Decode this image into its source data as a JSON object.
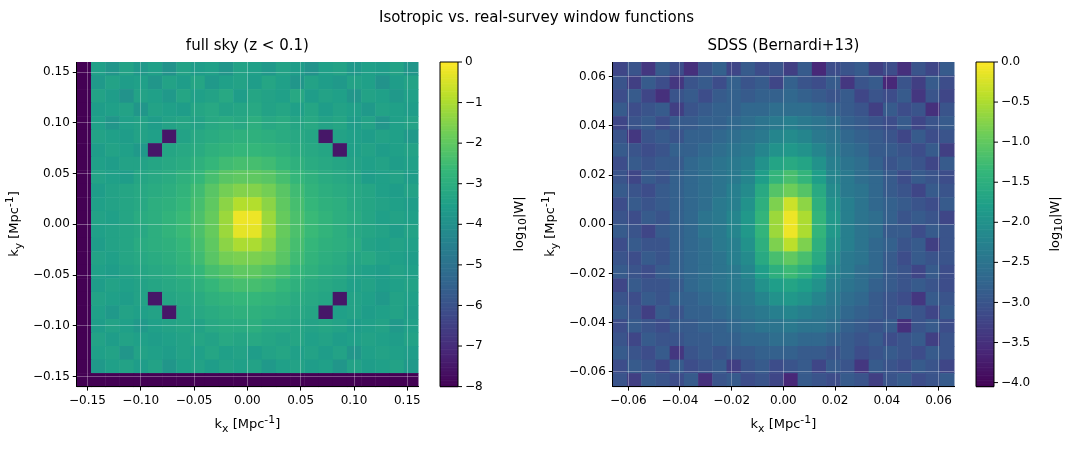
{
  "chart_data": [
    {
      "type": "other",
      "title": "Isotropic vs. real-survey window functions"
    },
    {
      "type": "heatmap",
      "title": "full sky (z < 0.1)",
      "xlabel": "k$_{x}$ [Mpc$^{-1}$]",
      "ylabel": "k$_{y}$ [Mpc$^{-1}$]",
      "clabel": "log$_{10}$|W|",
      "grid": true,
      "xlim": [
        -0.16,
        0.16
      ],
      "ylim": [
        -0.16,
        0.16
      ],
      "xticks": [
        {
          "value": -0.15,
          "label": "−0.15"
        },
        {
          "value": -0.1,
          "label": "−0.10"
        },
        {
          "value": -0.05,
          "label": "−0.05"
        },
        {
          "value": 0,
          "label": "0.00"
        },
        {
          "value": 0.05,
          "label": "0.05"
        },
        {
          "value": 0.1,
          "label": "0.10"
        },
        {
          "value": 0.15,
          "label": "0.15"
        }
      ],
      "yticks": [
        {
          "value": -0.15,
          "label": "−0.15"
        },
        {
          "value": -0.1,
          "label": "−0.10"
        },
        {
          "value": -0.05,
          "label": "−0.05"
        },
        {
          "value": 0,
          "label": "0.00"
        },
        {
          "value": 0.05,
          "label": "0.05"
        },
        {
          "value": 0.1,
          "label": "0.10"
        },
        {
          "value": 0.15,
          "label": "0.15"
        }
      ],
      "clim": [
        -8,
        0
      ],
      "cticks": [
        0,
        {
          "value": -1,
          "label": "−1"
        },
        {
          "value": -2,
          "label": "−2"
        },
        {
          "value": -3,
          "label": "−3"
        },
        {
          "value": -4,
          "label": "−4"
        },
        {
          "value": -5,
          "label": "−5"
        },
        {
          "value": -6,
          "label": "−6"
        },
        {
          "value": -7,
          "label": "−7"
        },
        {
          "value": -8,
          "label": "−8"
        }
      ],
      "cells": [
        [
          -8,
          -3.5,
          -3.8,
          -3.4,
          -3.7,
          -3.5,
          -3.9,
          -3.4,
          -3.6,
          -3.5,
          -3.8,
          -3.4,
          -3.5,
          -3.7,
          -3.4,
          -3.6,
          -3.9,
          -3.5,
          -3.4,
          -3.7,
          -3.5,
          -3.6,
          -3.4,
          -3.8
        ],
        [
          -8,
          -3.7,
          -3.4,
          -3.6,
          -3.5,
          -3.8,
          -3.4,
          -3.6,
          -3.3,
          -3.7,
          -3.5,
          -3.4,
          -3.6,
          -3.3,
          -3.5,
          -3.8,
          -3.4,
          -3.6,
          -3.7,
          -3.4,
          -3.5,
          -3.9,
          -3.6,
          -3.4
        ],
        [
          -8,
          -3.4,
          -3.6,
          -3.9,
          -3.4,
          -3.5,
          -3.7,
          -3.3,
          -3.5,
          -3.4,
          -3.2,
          -3.6,
          -3.3,
          -3.4,
          -3.5,
          -3.2,
          -3.6,
          -3.4,
          -3.5,
          -3.8,
          -3.4,
          -3.5,
          -3.7,
          -3.5
        ],
        [
          -8,
          -3.6,
          -3.5,
          -3.4,
          -3.8,
          -3.4,
          -3.5,
          -3.6,
          -3.3,
          -3.2,
          -3.4,
          -3.3,
          -3.2,
          -3.4,
          -3.3,
          -3.5,
          -3.3,
          -3.6,
          -3.4,
          -3.5,
          -3.7,
          -3.4,
          -3.5,
          -3.6
        ],
        [
          -8,
          -3.5,
          -3.8,
          -3.5,
          -3.4,
          -3.6,
          -3.4,
          -3.3,
          -3.4,
          -3.2,
          -3.1,
          -3.2,
          -3.0,
          -3.2,
          -3.1,
          -3.3,
          -3.2,
          -3.4,
          -3.3,
          -3.6,
          -3.4,
          -3.8,
          -3.5,
          -3.4
        ],
        [
          -8,
          -3.4,
          -3.5,
          -3.6,
          -3.4,
          -3.5,
          -7.5,
          -3.4,
          -3.2,
          -3.1,
          -3.0,
          -2.9,
          -2.9,
          -3.0,
          -3.1,
          -3.2,
          -3.3,
          -7.5,
          -3.4,
          -3.5,
          -3.6,
          -3.4,
          -3.5,
          -3.7
        ],
        [
          -8,
          -3.6,
          -3.4,
          -3.5,
          -3.7,
          -7.5,
          -3.3,
          -3.2,
          -3.1,
          -2.9,
          -2.8,
          -2.7,
          -2.7,
          -2.8,
          -2.9,
          -3.1,
          -3.2,
          -3.3,
          -7.5,
          -3.5,
          -3.4,
          -3.6,
          -3.5,
          -3.4
        ],
        [
          -8,
          -3.5,
          -3.6,
          -3.4,
          -3.4,
          -3.3,
          -3.2,
          -3.1,
          -2.9,
          -2.7,
          -2.5,
          -2.4,
          -2.4,
          -2.5,
          -2.7,
          -2.9,
          -3.1,
          -3.2,
          -3.3,
          -3.4,
          -3.5,
          -3.4,
          -3.6,
          -3.5
        ],
        [
          -8,
          -3.4,
          -3.5,
          -3.6,
          -3.3,
          -3.2,
          -3.1,
          -2.9,
          -2.7,
          -2.4,
          -2.1,
          -2.0,
          -2.0,
          -2.1,
          -2.4,
          -2.7,
          -2.9,
          -3.1,
          -3.2,
          -3.3,
          -3.6,
          -3.5,
          -3.4,
          -3.6
        ],
        [
          -8,
          -3.6,
          -3.4,
          -3.3,
          -3.2,
          -3.1,
          -3.0,
          -2.8,
          -2.5,
          -2.1,
          -1.7,
          -1.5,
          -1.5,
          -1.7,
          -2.1,
          -2.5,
          -2.8,
          -3.0,
          -3.1,
          -3.2,
          -3.3,
          -3.5,
          -3.6,
          -3.4
        ],
        [
          -8,
          -3.5,
          -3.4,
          -3.3,
          -3.2,
          -3.0,
          -2.9,
          -2.7,
          -2.4,
          -2.0,
          -1.4,
          -0.9,
          -0.9,
          -1.4,
          -2.0,
          -2.4,
          -2.7,
          -2.9,
          -3.0,
          -3.2,
          -3.3,
          -3.4,
          -3.5,
          -3.6
        ],
        [
          -8,
          -3.4,
          -3.5,
          -3.3,
          -3.1,
          -3.0,
          -2.8,
          -2.6,
          -2.3,
          -1.9,
          -1.2,
          -0.2,
          -0.2,
          -1.2,
          -1.9,
          -2.3,
          -2.6,
          -2.8,
          -3.0,
          -3.1,
          -3.3,
          -3.5,
          -3.4,
          -3.5
        ],
        [
          -8,
          -3.5,
          -3.4,
          -3.3,
          -3.2,
          -3.0,
          -2.8,
          -2.6,
          -2.3,
          -1.9,
          -1.2,
          -0.3,
          -0.3,
          -1.2,
          -1.9,
          -2.3,
          -2.6,
          -2.8,
          -3.0,
          -3.2,
          -3.3,
          -3.4,
          -3.6,
          -3.4
        ],
        [
          -8,
          -3.6,
          -3.4,
          -3.3,
          -3.1,
          -3.0,
          -2.9,
          -2.7,
          -2.4,
          -2.0,
          -1.4,
          -1.0,
          -1.0,
          -1.4,
          -2.0,
          -2.4,
          -2.7,
          -2.9,
          -3.0,
          -3.1,
          -3.4,
          -3.5,
          -3.4,
          -3.5
        ],
        [
          -8,
          -3.4,
          -3.5,
          -3.3,
          -3.2,
          -3.1,
          -3.0,
          -2.8,
          -2.5,
          -2.1,
          -1.7,
          -1.6,
          -1.6,
          -1.7,
          -2.1,
          -2.5,
          -2.8,
          -3.0,
          -3.1,
          -3.3,
          -3.2,
          -3.4,
          -3.5,
          -3.6
        ],
        [
          -8,
          -3.5,
          -3.6,
          -3.4,
          -3.3,
          -3.2,
          -3.1,
          -2.9,
          -2.7,
          -2.4,
          -2.2,
          -2.0,
          -2.0,
          -2.2,
          -2.4,
          -2.7,
          -2.9,
          -3.1,
          -3.2,
          -3.4,
          -3.5,
          -3.6,
          -3.4,
          -3.5
        ],
        [
          -8,
          -3.6,
          -3.4,
          -3.5,
          -3.4,
          -3.3,
          -3.2,
          -3.1,
          -2.9,
          -2.7,
          -2.5,
          -2.4,
          -2.4,
          -2.5,
          -2.7,
          -2.9,
          -3.1,
          -3.2,
          -3.3,
          -3.5,
          -3.4,
          -3.6,
          -3.5,
          -3.4
        ],
        [
          -8,
          -3.4,
          -3.5,
          -3.6,
          -3.4,
          -7.5,
          -3.3,
          -3.2,
          -3.1,
          -2.9,
          -2.8,
          -2.7,
          -2.7,
          -2.8,
          -2.9,
          -3.1,
          -3.2,
          -3.3,
          -7.5,
          -3.4,
          -3.5,
          -3.7,
          -3.4,
          -3.5
        ],
        [
          -8,
          -3.5,
          -3.7,
          -3.4,
          -3.5,
          -3.4,
          -7.5,
          -3.3,
          -3.2,
          -3.1,
          -3.0,
          -2.9,
          -2.9,
          -3.0,
          -3.1,
          -3.2,
          -3.3,
          -7.5,
          -3.5,
          -3.4,
          -3.6,
          -3.5,
          -3.4,
          -3.6
        ],
        [
          -8,
          -3.6,
          -3.4,
          -3.5,
          -3.7,
          -3.5,
          -3.4,
          -3.3,
          -3.4,
          -3.2,
          -3.1,
          -3.1,
          -3.0,
          -3.2,
          -3.2,
          -3.3,
          -3.4,
          -3.3,
          -3.4,
          -3.6,
          -3.5,
          -3.4,
          -3.7,
          -3.5
        ],
        [
          -8,
          -3.4,
          -3.6,
          -3.4,
          -3.5,
          -3.6,
          -3.5,
          -3.4,
          -3.3,
          -3.4,
          -3.2,
          -3.3,
          -3.2,
          -3.3,
          -3.4,
          -3.3,
          -3.5,
          -3.4,
          -3.6,
          -3.5,
          -3.4,
          -3.5,
          -3.6,
          -3.4
        ],
        [
          -8,
          -3.5,
          -3.4,
          -3.8,
          -3.4,
          -3.5,
          -3.6,
          -3.4,
          -3.5,
          -3.3,
          -3.5,
          -3.4,
          -3.6,
          -3.4,
          -3.3,
          -3.5,
          -3.4,
          -3.6,
          -3.4,
          -3.8,
          -3.5,
          -3.4,
          -3.5,
          -3.6
        ],
        [
          -8,
          -3.7,
          -3.5,
          -3.4,
          -3.6,
          -3.4,
          -3.8,
          -3.5,
          -3.4,
          -3.6,
          -3.4,
          -3.5,
          -3.4,
          -3.7,
          -3.5,
          -3.4,
          -3.6,
          -3.5,
          -3.8,
          -3.4,
          -3.6,
          -3.5,
          -3.4,
          -3.7
        ],
        [
          -8,
          -8,
          -8,
          -8,
          -8,
          -8,
          -8,
          -8,
          -8,
          -8,
          -8,
          -8,
          -8,
          -8,
          -8,
          -8,
          -8,
          -8,
          -8,
          -8,
          -8,
          -8,
          -8,
          -8
        ]
      ]
    },
    {
      "type": "heatmap",
      "title": "SDSS (Bernardi+13)",
      "xlabel": "k$_{x}$ [Mpc$^{-1}$]",
      "ylabel": "k$_{y}$ [Mpc$^{-1}$]",
      "clabel": "log$_{10}$|W|",
      "grid": true,
      "xlim": [
        -0.066,
        0.066
      ],
      "ylim": [
        -0.066,
        0.066
      ],
      "xticks": [
        {
          "value": -0.06,
          "label": "−0.06"
        },
        {
          "value": -0.04,
          "label": "−0.04"
        },
        {
          "value": -0.02,
          "label": "−0.02"
        },
        {
          "value": 0,
          "label": "0.00"
        },
        {
          "value": 0.02,
          "label": "0.02"
        },
        {
          "value": 0.04,
          "label": "0.04"
        },
        {
          "value": 0.06,
          "label": "0.06"
        }
      ],
      "yticks": [
        {
          "value": -0.06,
          "label": "−0.06"
        },
        {
          "value": -0.04,
          "label": "−0.04"
        },
        {
          "value": -0.02,
          "label": "−0.02"
        },
        {
          "value": 0,
          "label": "0.00"
        },
        {
          "value": 0.02,
          "label": "0.02"
        },
        {
          "value": 0.04,
          "label": "0.04"
        },
        {
          "value": 0.06,
          "label": "0.06"
        }
      ],
      "clim": [
        -4.05,
        0
      ],
      "cticks": [
        {
          "value": 0,
          "label": "0.0"
        },
        {
          "value": -0.5,
          "label": "−0.5"
        },
        {
          "value": -1,
          "label": "−1.0"
        },
        {
          "value": -1.5,
          "label": "−1.5"
        },
        {
          "value": -2,
          "label": "−2.0"
        },
        {
          "value": -2.5,
          "label": "−2.5"
        },
        {
          "value": -3,
          "label": "−3.0"
        },
        {
          "value": -3.5,
          "label": "−3.5"
        },
        {
          "value": -4,
          "label": "−4.0"
        }
      ],
      "cells": [
        [
          -3.2,
          -3.0,
          -3.4,
          -2.9,
          -3.1,
          -3.5,
          -3.0,
          -2.8,
          -3.2,
          -2.9,
          -3.1,
          -3.0,
          -3.3,
          -2.9,
          -3.6,
          -3.1,
          -3.0,
          -2.9,
          -3.3,
          -3.1,
          -3.5,
          -3.0,
          -3.2,
          -2.9
        ],
        [
          -3.0,
          -3.3,
          -2.9,
          -3.1,
          -3.4,
          -3.0,
          -2.9,
          -3.1,
          -2.8,
          -3.0,
          -2.9,
          -3.2,
          -2.8,
          -3.0,
          -3.1,
          -2.9,
          -3.4,
          -3.0,
          -2.9,
          -3.6,
          -3.0,
          -3.3,
          -2.9,
          -3.1
        ],
        [
          -3.1,
          -2.9,
          -3.2,
          -3.5,
          -3.0,
          -2.9,
          -3.1,
          -2.9,
          -2.8,
          -2.9,
          -2.8,
          -2.8,
          -2.7,
          -2.8,
          -2.9,
          -3.0,
          -2.9,
          -3.2,
          -3.0,
          -3.1,
          -2.9,
          -3.4,
          -3.0,
          -3.2
        ],
        [
          -2.9,
          -3.1,
          -3.0,
          -2.9,
          -3.3,
          -3.0,
          -2.9,
          -2.8,
          -2.8,
          -2.7,
          -2.7,
          -2.6,
          -2.6,
          -2.6,
          -2.7,
          -2.8,
          -2.9,
          -3.0,
          -3.3,
          -2.9,
          -3.1,
          -3.0,
          -3.5,
          -3.0
        ],
        [
          -3.2,
          -3.0,
          -2.9,
          -3.1,
          -2.9,
          -2.9,
          -2.8,
          -2.8,
          -2.7,
          -2.6,
          -2.5,
          -2.4,
          -2.3,
          -2.4,
          -2.5,
          -2.6,
          -2.8,
          -2.9,
          -3.0,
          -3.1,
          -2.9,
          -3.2,
          -3.0,
          -2.9
        ],
        [
          -3.0,
          -3.4,
          -3.0,
          -2.9,
          -3.0,
          -2.8,
          -2.8,
          -2.7,
          -2.6,
          -2.5,
          -2.4,
          -2.2,
          -2.1,
          -2.2,
          -2.4,
          -2.5,
          -2.7,
          -2.8,
          -2.9,
          -3.0,
          -3.2,
          -2.9,
          -3.1,
          -3.0
        ],
        [
          -2.9,
          -3.0,
          -3.1,
          -3.0,
          -2.8,
          -2.8,
          -2.7,
          -2.6,
          -2.5,
          -2.4,
          -2.2,
          -2.0,
          -1.9,
          -2.0,
          -2.2,
          -2.4,
          -2.6,
          -2.7,
          -2.9,
          -2.9,
          -3.0,
          -3.1,
          -2.9,
          -3.3
        ],
        [
          -3.1,
          -2.9,
          -3.0,
          -2.9,
          -2.9,
          -2.7,
          -2.6,
          -2.5,
          -2.4,
          -2.3,
          -2.0,
          -1.7,
          -1.6,
          -1.7,
          -2.0,
          -2.3,
          -2.5,
          -2.6,
          -2.8,
          -3.0,
          -2.9,
          -3.0,
          -3.2,
          -2.9
        ],
        [
          -3.0,
          -3.2,
          -2.9,
          -3.0,
          -2.8,
          -2.7,
          -2.6,
          -2.5,
          -2.4,
          -2.2,
          -1.8,
          -1.4,
          -1.2,
          -1.4,
          -1.8,
          -2.2,
          -2.4,
          -2.6,
          -2.7,
          -2.9,
          -3.1,
          -2.9,
          -3.0,
          -3.1
        ],
        [
          -2.9,
          -3.0,
          -3.1,
          -2.9,
          -2.8,
          -2.7,
          -2.6,
          -2.5,
          -2.3,
          -2.1,
          -1.6,
          -1.1,
          -0.9,
          -1.1,
          -1.6,
          -2.1,
          -2.4,
          -2.5,
          -2.7,
          -2.9,
          -3.0,
          -3.2,
          -2.9,
          -3.0
        ],
        [
          -3.1,
          -2.9,
          -3.0,
          -2.9,
          -2.8,
          -2.7,
          -2.6,
          -2.4,
          -2.3,
          -2.0,
          -1.5,
          -0.8,
          -0.3,
          -0.7,
          -1.5,
          -2.0,
          -2.3,
          -2.5,
          -2.7,
          -2.8,
          -2.9,
          -3.0,
          -3.1,
          -2.9
        ],
        [
          -3.0,
          -3.1,
          -2.9,
          -3.0,
          -2.8,
          -2.7,
          -2.5,
          -2.4,
          -2.2,
          -1.9,
          -1.4,
          -0.6,
          -0.1,
          -0.5,
          -1.4,
          -1.9,
          -2.3,
          -2.5,
          -2.6,
          -2.8,
          -3.0,
          -2.9,
          -3.0,
          -3.2
        ],
        [
          -2.9,
          -3.0,
          -3.2,
          -2.9,
          -2.8,
          -2.7,
          -2.5,
          -2.4,
          -2.2,
          -1.9,
          -1.4,
          -0.6,
          -0.1,
          -0.5,
          -1.4,
          -1.9,
          -2.3,
          -2.5,
          -2.6,
          -2.9,
          -2.9,
          -3.1,
          -2.9,
          -3.0
        ],
        [
          -3.1,
          -2.9,
          -3.0,
          -3.0,
          -2.8,
          -2.7,
          -2.6,
          -2.4,
          -2.3,
          -2.0,
          -1.5,
          -0.8,
          -0.4,
          -0.8,
          -1.5,
          -2.0,
          -2.3,
          -2.5,
          -2.7,
          -2.8,
          -3.0,
          -2.9,
          -3.3,
          -3.0
        ],
        [
          -3.0,
          -3.1,
          -2.9,
          -3.0,
          -2.8,
          -2.7,
          -2.6,
          -2.5,
          -2.3,
          -2.1,
          -1.6,
          -1.2,
          -1.0,
          -1.2,
          -1.6,
          -2.1,
          -2.4,
          -2.5,
          -2.7,
          -2.9,
          -3.1,
          -2.9,
          -3.0,
          -3.0
        ],
        [
          -2.9,
          -3.0,
          -3.1,
          -2.9,
          -2.8,
          -2.7,
          -2.6,
          -2.5,
          -2.4,
          -2.2,
          -1.8,
          -1.5,
          -1.3,
          -1.5,
          -1.8,
          -2.2,
          -2.4,
          -2.6,
          -2.7,
          -2.9,
          -3.0,
          -3.2,
          -2.9,
          -3.1
        ],
        [
          -3.2,
          -2.9,
          -3.0,
          -3.0,
          -2.9,
          -2.7,
          -2.6,
          -2.5,
          -2.4,
          -2.3,
          -2.0,
          -1.8,
          -1.7,
          -1.8,
          -2.0,
          -2.3,
          -2.5,
          -2.6,
          -2.8,
          -2.9,
          -3.0,
          -2.9,
          -3.0,
          -3.1
        ],
        [
          -3.0,
          -3.1,
          -2.9,
          -3.0,
          -2.8,
          -2.8,
          -2.7,
          -2.6,
          -2.5,
          -2.4,
          -2.2,
          -2.0,
          -1.9,
          -2.0,
          -2.2,
          -2.4,
          -2.6,
          -2.7,
          -2.9,
          -3.0,
          -3.1,
          -3.4,
          -2.9,
          -3.0
        ],
        [
          -2.9,
          -3.0,
          -3.3,
          -2.9,
          -3.0,
          -2.8,
          -2.8,
          -2.7,
          -2.6,
          -2.5,
          -2.4,
          -2.3,
          -2.2,
          -2.3,
          -2.4,
          -2.5,
          -2.7,
          -2.8,
          -2.9,
          -3.0,
          -2.9,
          -3.0,
          -3.2,
          -2.9
        ],
        [
          -3.1,
          -2.9,
          -3.0,
          -3.1,
          -2.9,
          -2.9,
          -2.8,
          -2.8,
          -2.7,
          -2.6,
          -2.5,
          -2.5,
          -2.4,
          -2.5,
          -2.5,
          -2.6,
          -2.8,
          -2.9,
          -3.0,
          -2.9,
          -3.5,
          -3.0,
          -2.9,
          -3.1
        ],
        [
          -3.0,
          -3.2,
          -2.9,
          -3.0,
          -3.0,
          -2.9,
          -2.9,
          -2.8,
          -2.8,
          -2.7,
          -2.7,
          -2.6,
          -2.6,
          -2.7,
          -2.7,
          -2.8,
          -2.9,
          -3.0,
          -2.9,
          -3.1,
          -3.0,
          -2.9,
          -3.3,
          -3.0
        ],
        [
          -2.9,
          -3.0,
          -3.1,
          -2.9,
          -3.4,
          -3.0,
          -2.9,
          -3.0,
          -2.9,
          -2.9,
          -2.8,
          -2.8,
          -2.8,
          -2.9,
          -2.9,
          -3.0,
          -2.9,
          -3.1,
          -3.0,
          -2.9,
          -3.0,
          -3.1,
          -2.9,
          -3.0
        ],
        [
          -3.1,
          -2.9,
          -3.0,
          -3.2,
          -2.9,
          -3.1,
          -3.0,
          -2.9,
          -3.3,
          -3.0,
          -2.9,
          -3.1,
          -3.0,
          -2.9,
          -3.2,
          -2.9,
          -3.0,
          -3.4,
          -2.9,
          -3.0,
          -3.1,
          -2.9,
          -3.0,
          -3.2
        ],
        [
          -3.0,
          -3.3,
          -2.9,
          -3.0,
          -3.1,
          -2.9,
          -3.5,
          -3.0,
          -2.9,
          -3.1,
          -3.0,
          -3.2,
          -3.6,
          -2.9,
          -3.0,
          -3.1,
          -2.9,
          -3.0,
          -3.3,
          -3.0,
          -2.9,
          -3.1,
          -3.0,
          -2.9
        ]
      ]
    }
  ]
}
